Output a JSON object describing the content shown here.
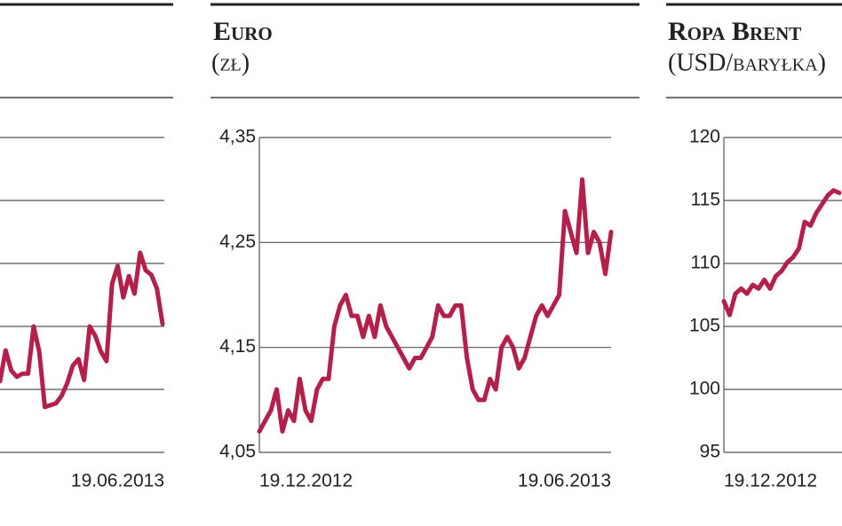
{
  "chart_data": [
    {
      "type": "line",
      "color": "#b3204a",
      "ylim": [
        0,
        5
      ],
      "grid": true,
      "categories": [
        null,
        null,
        null,
        null,
        null,
        null,
        null,
        null,
        null,
        null,
        null,
        null,
        null,
        null,
        null,
        null,
        null,
        null,
        null,
        null,
        null,
        null,
        null,
        null,
        null,
        null,
        null,
        null,
        null,
        "19.06.2013"
      ],
      "values": [
        1.13,
        1.62,
        1.3,
        1.2,
        1.25,
        1.25,
        2.0,
        1.6,
        0.72,
        0.75,
        0.78,
        0.9,
        1.1,
        1.38,
        1.48,
        1.15,
        2.0,
        1.85,
        1.6,
        1.45,
        2.68,
        2.96,
        2.46,
        2.8,
        2.52,
        3.17,
        2.89,
        2.82,
        2.6,
        2.04
      ]
    },
    {
      "type": "line",
      "title": "Euro",
      "subtitle": "(zł)",
      "color": "#b3204a",
      "ylim": [
        4.05,
        4.35
      ],
      "grid": true,
      "yticks": [
        {
          "value": 4.05,
          "label": "4,05"
        },
        {
          "value": 4.15,
          "label": "4,15"
        },
        {
          "value": 4.25,
          "label": "4,25"
        },
        {
          "value": 4.35,
          "label": "4,35"
        }
      ],
      "categories": [
        "19.12.2012",
        null,
        null,
        null,
        null,
        null,
        null,
        null,
        null,
        null,
        null,
        null,
        null,
        null,
        null,
        null,
        null,
        null,
        null,
        null,
        null,
        null,
        null,
        null,
        null,
        null,
        null,
        null,
        null,
        null,
        null,
        null,
        null,
        null,
        null,
        null,
        null,
        null,
        null,
        null,
        null,
        null,
        null,
        null,
        null,
        null,
        null,
        null,
        null,
        null,
        null,
        null,
        null,
        null,
        null,
        null,
        null,
        null,
        null,
        null,
        null,
        "19.06.2013"
      ],
      "values": [
        4.07,
        4.08,
        4.09,
        4.11,
        4.07,
        4.09,
        4.08,
        4.12,
        4.09,
        4.08,
        4.11,
        4.12,
        4.12,
        4.17,
        4.19,
        4.2,
        4.18,
        4.18,
        4.16,
        4.18,
        4.16,
        4.19,
        4.17,
        4.16,
        4.15,
        4.14,
        4.13,
        4.14,
        4.14,
        4.15,
        4.16,
        4.19,
        4.18,
        4.18,
        4.19,
        4.19,
        4.14,
        4.11,
        4.1,
        4.1,
        4.12,
        4.11,
        4.15,
        4.16,
        4.15,
        4.13,
        4.14,
        4.16,
        4.18,
        4.19,
        4.18,
        4.19,
        4.2,
        4.28,
        4.26,
        4.24,
        4.31,
        4.24,
        4.26,
        4.25,
        4.22,
        4.26
      ]
    },
    {
      "type": "line",
      "title": "Ropa Brent",
      "subtitle": "(USD/baryłka)",
      "color": "#b3204a",
      "ylim": [
        95,
        120
      ],
      "grid": true,
      "yticks": [
        95,
        100,
        105,
        110,
        115,
        120
      ],
      "categories": [
        "19.12.2012",
        null,
        null,
        null,
        null,
        null,
        null,
        null,
        null,
        null,
        null,
        null,
        null,
        null,
        null,
        null,
        null,
        null,
        null,
        null,
        null
      ],
      "values": [
        107,
        105.9,
        107.6,
        108,
        107.6,
        108.3,
        108,
        108.7,
        108,
        109,
        109.4,
        110.1,
        110.5,
        111.2,
        113.3,
        113,
        114,
        114.7,
        115.4,
        115.8,
        115.6
      ]
    }
  ]
}
